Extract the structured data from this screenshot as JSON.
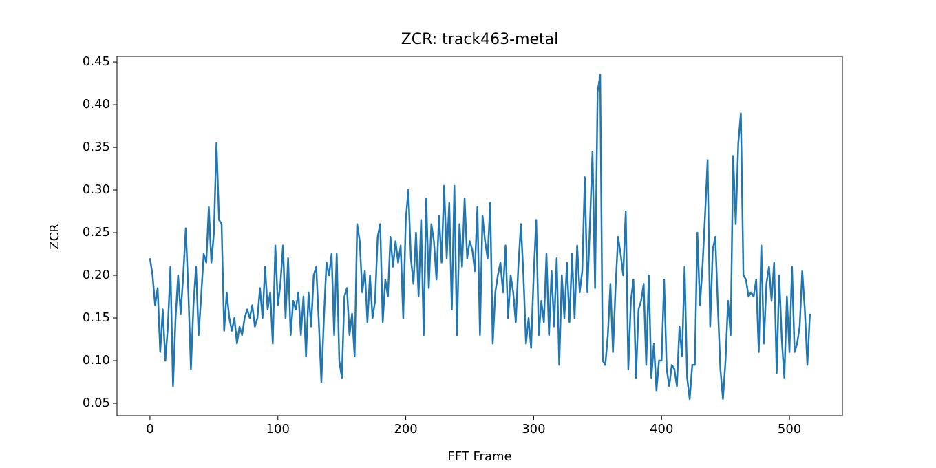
{
  "chart_data": {
    "type": "line",
    "title": "ZCR: track463-metal",
    "x_label": "FFT Frame",
    "y_label": "ZCR",
    "x": [
      0,
      2,
      4,
      6,
      8,
      10,
      12,
      14,
      16,
      18,
      20,
      22,
      24,
      26,
      28,
      30,
      32,
      34,
      36,
      38,
      40,
      42,
      44,
      46,
      48,
      50,
      52,
      54,
      56,
      58,
      60,
      62,
      64,
      66,
      68,
      70,
      72,
      74,
      76,
      78,
      80,
      82,
      84,
      86,
      88,
      90,
      92,
      94,
      96,
      98,
      100,
      102,
      104,
      106,
      108,
      110,
      112,
      114,
      116,
      118,
      120,
      122,
      124,
      126,
      128,
      130,
      132,
      134,
      136,
      138,
      140,
      142,
      144,
      146,
      148,
      150,
      152,
      154,
      156,
      158,
      160,
      162,
      164,
      166,
      168,
      170,
      172,
      174,
      176,
      178,
      180,
      182,
      184,
      186,
      188,
      190,
      192,
      194,
      196,
      198,
      200,
      202,
      204,
      206,
      208,
      210,
      212,
      214,
      216,
      218,
      220,
      222,
      224,
      226,
      228,
      230,
      232,
      234,
      236,
      238,
      240,
      242,
      244,
      246,
      248,
      250,
      252,
      254,
      256,
      258,
      260,
      262,
      264,
      266,
      268,
      270,
      272,
      274,
      276,
      278,
      280,
      282,
      284,
      286,
      288,
      290,
      292,
      294,
      296,
      298,
      300,
      302,
      304,
      306,
      308,
      310,
      312,
      314,
      316,
      318,
      320,
      322,
      324,
      326,
      328,
      330,
      332,
      334,
      336,
      338,
      340,
      342,
      344,
      346,
      348,
      350,
      352,
      354,
      356,
      358,
      360,
      362,
      364,
      366,
      368,
      370,
      372,
      374,
      376,
      378,
      380,
      382,
      384,
      386,
      388,
      390,
      392,
      394,
      396,
      398,
      400,
      402,
      404,
      406,
      408,
      410,
      412,
      414,
      416,
      418,
      420,
      422,
      424,
      426,
      428,
      430,
      432,
      434,
      436,
      438,
      440,
      442,
      444,
      446,
      448,
      450,
      452,
      454,
      456,
      458,
      460,
      462,
      464,
      466,
      468,
      470,
      472,
      474,
      476,
      478,
      480,
      482,
      484,
      486,
      488,
      490,
      492,
      494,
      496,
      498,
      500,
      502,
      504,
      506,
      508,
      510,
      512,
      514,
      516
    ],
    "series": [
      {
        "name": "ZCR",
        "color": "#1f77b4",
        "values": [
          0.22,
          0.2,
          0.165,
          0.185,
          0.11,
          0.16,
          0.1,
          0.14,
          0.21,
          0.07,
          0.15,
          0.2,
          0.155,
          0.2,
          0.255,
          0.18,
          0.09,
          0.165,
          0.21,
          0.13,
          0.175,
          0.225,
          0.215,
          0.28,
          0.215,
          0.25,
          0.355,
          0.265,
          0.26,
          0.135,
          0.18,
          0.15,
          0.135,
          0.15,
          0.12,
          0.14,
          0.13,
          0.15,
          0.16,
          0.15,
          0.165,
          0.14,
          0.15,
          0.185,
          0.15,
          0.21,
          0.16,
          0.18,
          0.12,
          0.235,
          0.165,
          0.19,
          0.235,
          0.15,
          0.22,
          0.13,
          0.17,
          0.16,
          0.18,
          0.13,
          0.175,
          0.105,
          0.18,
          0.14,
          0.2,
          0.21,
          0.145,
          0.075,
          0.15,
          0.215,
          0.2,
          0.225,
          0.13,
          0.225,
          0.1,
          0.08,
          0.175,
          0.185,
          0.13,
          0.155,
          0.105,
          0.26,
          0.24,
          0.18,
          0.205,
          0.145,
          0.2,
          0.15,
          0.17,
          0.245,
          0.26,
          0.145,
          0.195,
          0.175,
          0.245,
          0.21,
          0.24,
          0.215,
          0.235,
          0.15,
          0.265,
          0.3,
          0.22,
          0.19,
          0.25,
          0.175,
          0.265,
          0.13,
          0.29,
          0.185,
          0.26,
          0.24,
          0.195,
          0.27,
          0.215,
          0.305,
          0.22,
          0.285,
          0.16,
          0.305,
          0.13,
          0.26,
          0.21,
          0.29,
          0.22,
          0.24,
          0.23,
          0.205,
          0.28,
          0.13,
          0.27,
          0.24,
          0.22,
          0.285,
          0.12,
          0.18,
          0.2,
          0.215,
          0.18,
          0.235,
          0.15,
          0.2,
          0.18,
          0.145,
          0.21,
          0.26,
          0.2,
          0.12,
          0.15,
          0.115,
          0.2,
          0.265,
          0.13,
          0.17,
          0.145,
          0.225,
          0.13,
          0.205,
          0.14,
          0.22,
          0.095,
          0.2,
          0.15,
          0.215,
          0.145,
          0.225,
          0.15,
          0.235,
          0.18,
          0.205,
          0.315,
          0.18,
          0.26,
          0.345,
          0.185,
          0.415,
          0.435,
          0.1,
          0.095,
          0.13,
          0.19,
          0.11,
          0.185,
          0.245,
          0.225,
          0.2,
          0.275,
          0.09,
          0.17,
          0.195,
          0.08,
          0.16,
          0.17,
          0.19,
          0.095,
          0.2,
          0.08,
          0.12,
          0.065,
          0.1,
          0.1,
          0.195,
          0.09,
          0.07,
          0.095,
          0.09,
          0.07,
          0.14,
          0.105,
          0.21,
          0.08,
          0.055,
          0.095,
          0.095,
          0.25,
          0.165,
          0.21,
          0.27,
          0.335,
          0.14,
          0.23,
          0.245,
          0.165,
          0.09,
          0.055,
          0.1,
          0.17,
          0.13,
          0.34,
          0.26,
          0.355,
          0.39,
          0.2,
          0.195,
          0.175,
          0.18,
          0.175,
          0.195,
          0.11,
          0.235,
          0.12,
          0.19,
          0.21,
          0.17,
          0.215,
          0.085,
          0.2,
          0.125,
          0.08,
          0.175,
          0.11,
          0.21,
          0.11,
          0.12,
          0.14,
          0.205,
          0.16,
          0.095,
          0.155
        ]
      }
    ],
    "xlim": [
      -25.8,
      541.4
    ],
    "ylim": [
      0.0355,
      0.4565
    ],
    "xticks": [
      0,
      100,
      200,
      300,
      400,
      500
    ],
    "yticks": [
      0.05,
      {
        "value": 0.1,
        "label": "0.10"
      },
      0.15,
      {
        "value": 0.2,
        "label": "0.20"
      },
      0.25,
      {
        "value": 0.3,
        "label": "0.30"
      },
      0.35,
      {
        "value": 0.4,
        "label": "0.40"
      },
      0.45
    ],
    "grid": false
  }
}
